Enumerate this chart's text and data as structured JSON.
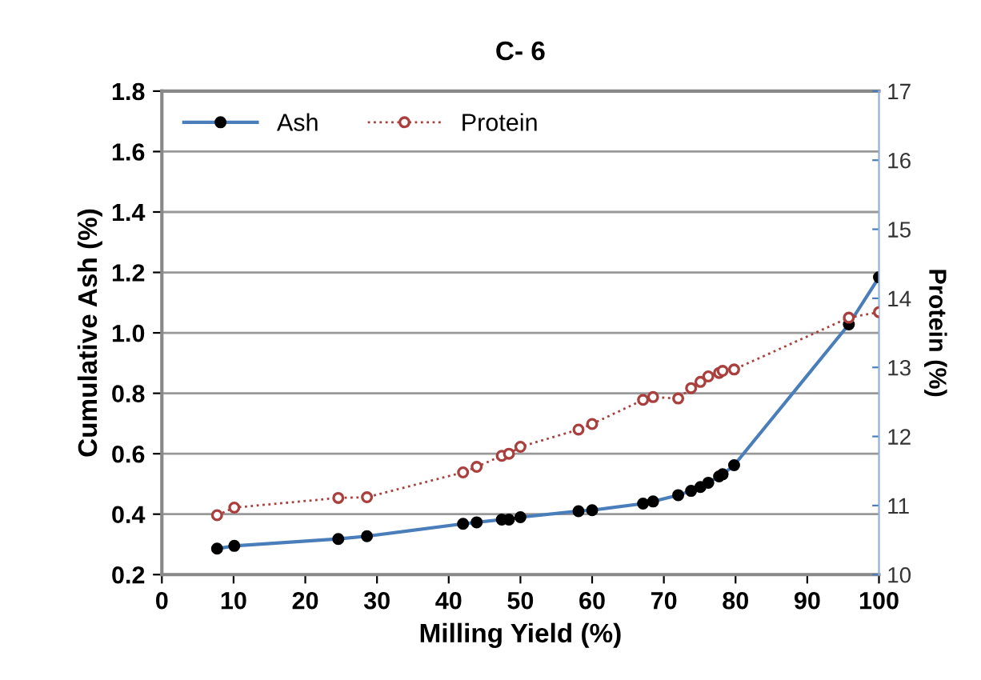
{
  "chart_data": {
    "type": "line",
    "title": "C- 6",
    "xlabel": "Milling Yield (%)",
    "ylabel": "Cumulative Ash (%)",
    "y2label": "Protein (%)",
    "xlim": [
      0,
      100
    ],
    "xticks": [
      0,
      10,
      20,
      30,
      40,
      50,
      60,
      70,
      80,
      90,
      100
    ],
    "ylim": [
      0.2,
      1.8
    ],
    "yticks": [
      {
        "value": 0.2,
        "label": "0.2"
      },
      {
        "value": 0.4,
        "label": "0.4"
      },
      {
        "value": 0.6,
        "label": "0.6"
      },
      {
        "value": 0.8,
        "label": "0.8"
      },
      {
        "value": 1,
        "label": "1.0"
      },
      {
        "value": 1.2,
        "label": "1.2"
      },
      {
        "value": 1.4,
        "label": "1.4"
      },
      {
        "value": 1.6,
        "label": "1.6"
      },
      {
        "value": 1.8,
        "label": "1.8"
      }
    ],
    "y2lim": [
      10,
      17
    ],
    "y2ticks": [
      10,
      11,
      12,
      13,
      14,
      15,
      16,
      17
    ],
    "grid": "y",
    "legend": "top left",
    "series": [
      {
        "name": "Ash",
        "color": "#4a7ebb",
        "marker": "circle",
        "line_style": "solid",
        "x": [
          7.7,
          10.1,
          24.6,
          28.6,
          42,
          43.9,
          47.4,
          48.4,
          50,
          58.1,
          60,
          67.1,
          68.5,
          72,
          73.8,
          75.1,
          76.2,
          77.7,
          78.2,
          79.8,
          95.8,
          100
        ],
        "values": [
          0.286,
          0.295,
          0.318,
          0.327,
          0.368,
          0.373,
          0.382,
          0.382,
          0.39,
          0.41,
          0.413,
          0.435,
          0.442,
          0.463,
          0.477,
          0.49,
          0.504,
          0.525,
          0.532,
          0.562,
          1.028,
          1.184
        ]
      },
      {
        "name": "Protein",
        "color": "#a9403e",
        "marker": "circle",
        "line_style": "dotted",
        "axis": "y2",
        "x": [
          7.7,
          10.1,
          24.6,
          28.6,
          42,
          43.9,
          47.4,
          48.4,
          50,
          58.1,
          60,
          67.1,
          68.5,
          72,
          73.8,
          75.1,
          76.2,
          77.7,
          78.2,
          79.8,
          95.8,
          100
        ],
        "values": [
          10.86,
          10.97,
          11.11,
          11.12,
          11.48,
          11.56,
          11.72,
          11.75,
          11.85,
          12.1,
          12.18,
          12.53,
          12.57,
          12.55,
          12.7,
          12.79,
          12.87,
          12.92,
          12.95,
          12.97,
          13.72,
          13.8
        ]
      }
    ]
  }
}
